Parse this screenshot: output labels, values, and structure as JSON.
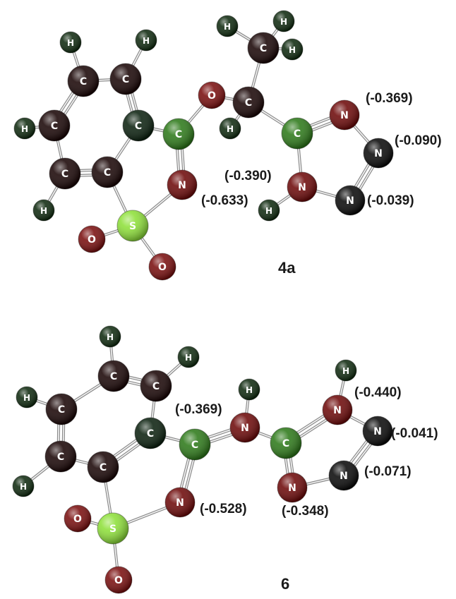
{
  "element_styles": {
    "C_dark": {
      "color": "#1a0606",
      "label": "C"
    },
    "C_green": {
      "color": "#2e7a1a",
      "label": "C"
    },
    "C_darkgreen": {
      "color": "#0c2210",
      "label": "C"
    },
    "N_red": {
      "color": "#6e0a0a",
      "label": "N"
    },
    "N_black": {
      "color": "#0a0a0a",
      "label": "N"
    },
    "O": {
      "color": "#7a0f0f",
      "label": "O"
    },
    "S": {
      "color": "#8ee03a",
      "label": "S"
    },
    "H": {
      "color": "#0f2a0f",
      "label": "H"
    }
  },
  "molecules": [
    {
      "compound_label": "4a",
      "charges": [
        "(-0.369)",
        "(-0.090)",
        "(-0.390)",
        "(-0.633)",
        "(-0.039)"
      ]
    },
    {
      "compound_label": "6",
      "charges": [
        "(-0.440)",
        "(-0.041)",
        "(-0.369)",
        "(-0.071)",
        "(-0.528)",
        "(-0.348)"
      ]
    }
  ]
}
